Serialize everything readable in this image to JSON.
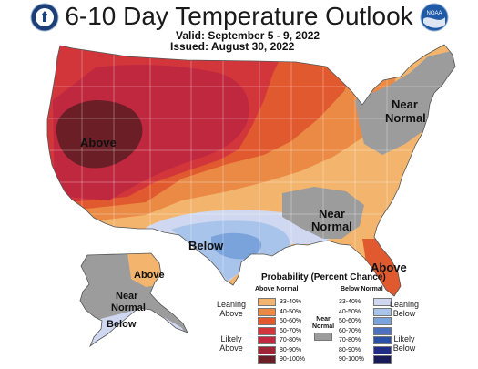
{
  "header": {
    "title": "6-10 Day Temperature Outlook",
    "valid_label": "Valid:",
    "valid_value": "September 5 - 9, 2022",
    "issued_label": "Issued:",
    "issued_value": "August 30, 2022"
  },
  "logos": {
    "left_icon": "commerce-seal-icon",
    "right_icon": "noaa-logo-icon",
    "right_text": "NOAA"
  },
  "colors": {
    "above_33_40": "#f3b56d",
    "above_40_50": "#ea8a45",
    "above_50_60": "#e1592f",
    "above_60_70": "#d2363b",
    "above_70_80": "#c02840",
    "above_80_90": "#9d2535",
    "above_90_100": "#6b1e26",
    "near_normal": "#9c9c9c",
    "below_33_40": "#cfd8f0",
    "below_40_50": "#a9c4ea",
    "below_50_60": "#7aa3dc",
    "below_60_70": "#4b72c0",
    "below_70_80": "#2a4fa6",
    "below_80_90": "#202c86",
    "below_90_100": "#191a5a"
  },
  "map_labels": {
    "above_west": "Above",
    "near_normal_ne_1": "Near",
    "near_normal_ne_2": "Normal",
    "near_normal_se_1": "Near",
    "near_normal_se_2": "Normal",
    "below_south": "Below",
    "above_florida": "Above",
    "above_alaska": "Above",
    "near_normal_ak_1": "Near",
    "near_normal_ak_2": "Normal",
    "below_alaska": "Below"
  },
  "legend": {
    "title": "Probability (Percent Chance)",
    "above_header": "Above Normal",
    "below_header": "Below Normal",
    "near_header_1": "Near",
    "near_header_2": "Normal",
    "leaning_above_1": "Leaning",
    "leaning_above_2": "Above",
    "likely_above_1": "Likely",
    "likely_above_2": "Above",
    "leaning_below_1": "Leaning",
    "leaning_below_2": "Below",
    "likely_below_1": "Likely",
    "likely_below_2": "Below",
    "ranges": [
      "33-40%",
      "40-50%",
      "50-60%",
      "60-70%",
      "70-80%",
      "80-90%",
      "90-100%"
    ]
  }
}
